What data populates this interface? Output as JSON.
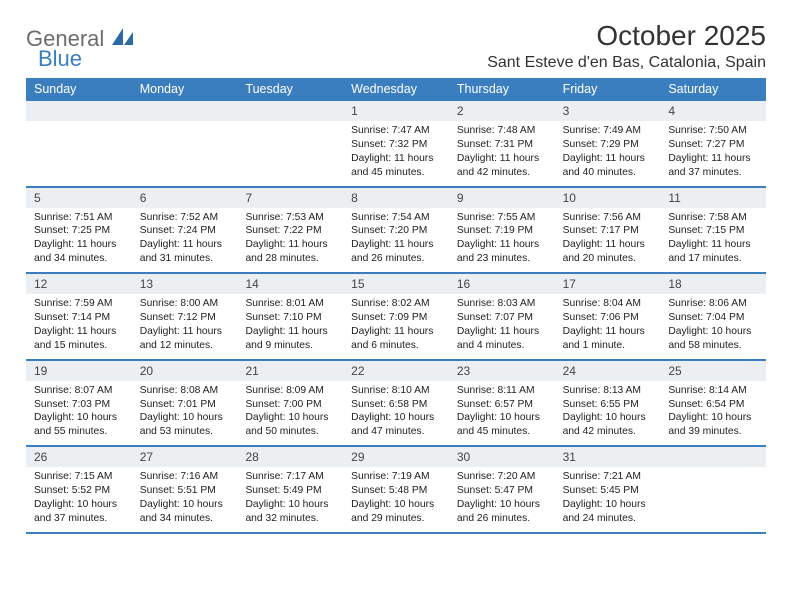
{
  "brand": {
    "top": "General",
    "bottom": "Blue",
    "sail_color": "#2f6aa8",
    "text_top_color": "#6d6d6d",
    "text_bottom_color": "#3b7ec0"
  },
  "title": "October 2025",
  "location": "Sant Esteve d'en Bas, Catalonia, Spain",
  "colors": {
    "header_bg": "#3b7ec0",
    "header_text": "#ffffff",
    "daynum_bg": "#eceff1",
    "week_border": "#3b7ec0",
    "body_text": "#222222",
    "title_color": "#333333"
  },
  "day_headers": [
    "Sunday",
    "Monday",
    "Tuesday",
    "Wednesday",
    "Thursday",
    "Friday",
    "Saturday"
  ],
  "weeks": [
    [
      {
        "n": "",
        "sr": "",
        "ss": "",
        "dl": ""
      },
      {
        "n": "",
        "sr": "",
        "ss": "",
        "dl": ""
      },
      {
        "n": "",
        "sr": "",
        "ss": "",
        "dl": ""
      },
      {
        "n": "1",
        "sr": "Sunrise: 7:47 AM",
        "ss": "Sunset: 7:32 PM",
        "dl": "Daylight: 11 hours and 45 minutes."
      },
      {
        "n": "2",
        "sr": "Sunrise: 7:48 AM",
        "ss": "Sunset: 7:31 PM",
        "dl": "Daylight: 11 hours and 42 minutes."
      },
      {
        "n": "3",
        "sr": "Sunrise: 7:49 AM",
        "ss": "Sunset: 7:29 PM",
        "dl": "Daylight: 11 hours and 40 minutes."
      },
      {
        "n": "4",
        "sr": "Sunrise: 7:50 AM",
        "ss": "Sunset: 7:27 PM",
        "dl": "Daylight: 11 hours and 37 minutes."
      }
    ],
    [
      {
        "n": "5",
        "sr": "Sunrise: 7:51 AM",
        "ss": "Sunset: 7:25 PM",
        "dl": "Daylight: 11 hours and 34 minutes."
      },
      {
        "n": "6",
        "sr": "Sunrise: 7:52 AM",
        "ss": "Sunset: 7:24 PM",
        "dl": "Daylight: 11 hours and 31 minutes."
      },
      {
        "n": "7",
        "sr": "Sunrise: 7:53 AM",
        "ss": "Sunset: 7:22 PM",
        "dl": "Daylight: 11 hours and 28 minutes."
      },
      {
        "n": "8",
        "sr": "Sunrise: 7:54 AM",
        "ss": "Sunset: 7:20 PM",
        "dl": "Daylight: 11 hours and 26 minutes."
      },
      {
        "n": "9",
        "sr": "Sunrise: 7:55 AM",
        "ss": "Sunset: 7:19 PM",
        "dl": "Daylight: 11 hours and 23 minutes."
      },
      {
        "n": "10",
        "sr": "Sunrise: 7:56 AM",
        "ss": "Sunset: 7:17 PM",
        "dl": "Daylight: 11 hours and 20 minutes."
      },
      {
        "n": "11",
        "sr": "Sunrise: 7:58 AM",
        "ss": "Sunset: 7:15 PM",
        "dl": "Daylight: 11 hours and 17 minutes."
      }
    ],
    [
      {
        "n": "12",
        "sr": "Sunrise: 7:59 AM",
        "ss": "Sunset: 7:14 PM",
        "dl": "Daylight: 11 hours and 15 minutes."
      },
      {
        "n": "13",
        "sr": "Sunrise: 8:00 AM",
        "ss": "Sunset: 7:12 PM",
        "dl": "Daylight: 11 hours and 12 minutes."
      },
      {
        "n": "14",
        "sr": "Sunrise: 8:01 AM",
        "ss": "Sunset: 7:10 PM",
        "dl": "Daylight: 11 hours and 9 minutes."
      },
      {
        "n": "15",
        "sr": "Sunrise: 8:02 AM",
        "ss": "Sunset: 7:09 PM",
        "dl": "Daylight: 11 hours and 6 minutes."
      },
      {
        "n": "16",
        "sr": "Sunrise: 8:03 AM",
        "ss": "Sunset: 7:07 PM",
        "dl": "Daylight: 11 hours and 4 minutes."
      },
      {
        "n": "17",
        "sr": "Sunrise: 8:04 AM",
        "ss": "Sunset: 7:06 PM",
        "dl": "Daylight: 11 hours and 1 minute."
      },
      {
        "n": "18",
        "sr": "Sunrise: 8:06 AM",
        "ss": "Sunset: 7:04 PM",
        "dl": "Daylight: 10 hours and 58 minutes."
      }
    ],
    [
      {
        "n": "19",
        "sr": "Sunrise: 8:07 AM",
        "ss": "Sunset: 7:03 PM",
        "dl": "Daylight: 10 hours and 55 minutes."
      },
      {
        "n": "20",
        "sr": "Sunrise: 8:08 AM",
        "ss": "Sunset: 7:01 PM",
        "dl": "Daylight: 10 hours and 53 minutes."
      },
      {
        "n": "21",
        "sr": "Sunrise: 8:09 AM",
        "ss": "Sunset: 7:00 PM",
        "dl": "Daylight: 10 hours and 50 minutes."
      },
      {
        "n": "22",
        "sr": "Sunrise: 8:10 AM",
        "ss": "Sunset: 6:58 PM",
        "dl": "Daylight: 10 hours and 47 minutes."
      },
      {
        "n": "23",
        "sr": "Sunrise: 8:11 AM",
        "ss": "Sunset: 6:57 PM",
        "dl": "Daylight: 10 hours and 45 minutes."
      },
      {
        "n": "24",
        "sr": "Sunrise: 8:13 AM",
        "ss": "Sunset: 6:55 PM",
        "dl": "Daylight: 10 hours and 42 minutes."
      },
      {
        "n": "25",
        "sr": "Sunrise: 8:14 AM",
        "ss": "Sunset: 6:54 PM",
        "dl": "Daylight: 10 hours and 39 minutes."
      }
    ],
    [
      {
        "n": "26",
        "sr": "Sunrise: 7:15 AM",
        "ss": "Sunset: 5:52 PM",
        "dl": "Daylight: 10 hours and 37 minutes."
      },
      {
        "n": "27",
        "sr": "Sunrise: 7:16 AM",
        "ss": "Sunset: 5:51 PM",
        "dl": "Daylight: 10 hours and 34 minutes."
      },
      {
        "n": "28",
        "sr": "Sunrise: 7:17 AM",
        "ss": "Sunset: 5:49 PM",
        "dl": "Daylight: 10 hours and 32 minutes."
      },
      {
        "n": "29",
        "sr": "Sunrise: 7:19 AM",
        "ss": "Sunset: 5:48 PM",
        "dl": "Daylight: 10 hours and 29 minutes."
      },
      {
        "n": "30",
        "sr": "Sunrise: 7:20 AM",
        "ss": "Sunset: 5:47 PM",
        "dl": "Daylight: 10 hours and 26 minutes."
      },
      {
        "n": "31",
        "sr": "Sunrise: 7:21 AM",
        "ss": "Sunset: 5:45 PM",
        "dl": "Daylight: 10 hours and 24 minutes."
      },
      {
        "n": "",
        "sr": "",
        "ss": "",
        "dl": ""
      }
    ]
  ]
}
